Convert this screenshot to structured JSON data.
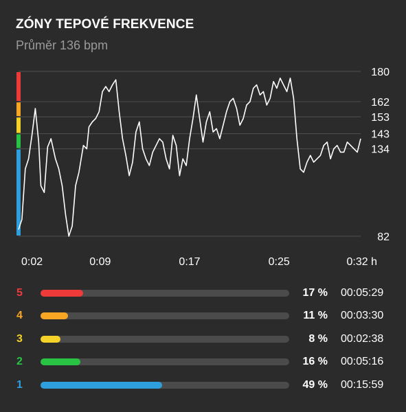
{
  "header": {
    "title": "ZÓNY TEPOVÉ FREKVENCE",
    "subtitle": "Průměr 136 bpm"
  },
  "chart_data": {
    "type": "line",
    "y_ticks": [
      "180",
      "162",
      "153",
      "143",
      "134",
      "82"
    ],
    "y_tick_values": [
      180,
      162,
      153,
      143,
      134,
      82
    ],
    "ylim": [
      82,
      180
    ],
    "x_ticks": [
      "0:02",
      "0:09",
      "0:17",
      "0:25",
      "0:32 h"
    ],
    "x_tick_values": [
      2,
      9,
      17,
      25,
      32
    ],
    "xlim": [
      1.7,
      32.3
    ],
    "grid": true,
    "line_color": "#ffffff",
    "series": [
      {
        "x": [
          1.7,
          2.0,
          2.3,
          2.6,
          2.9,
          3.2,
          3.5,
          3.7,
          4.0,
          4.3,
          4.6,
          5.0,
          5.3,
          5.6,
          5.9,
          6.2,
          6.5,
          6.8,
          7.1,
          7.5,
          7.8,
          8.0,
          8.3,
          8.6,
          8.9,
          9.2,
          9.5,
          9.8,
          10.1,
          10.4,
          10.7,
          11.0,
          11.3,
          11.6,
          11.9,
          12.2,
          12.5,
          12.8,
          13.1,
          13.4,
          13.7,
          14.0,
          14.3,
          14.6,
          14.9,
          15.2,
          15.5,
          15.8,
          16.1,
          16.4,
          16.7,
          17.0,
          17.3,
          17.6,
          17.9,
          18.2,
          18.5,
          18.8,
          19.1,
          19.4,
          19.7,
          20.0,
          20.3,
          20.6,
          20.9,
          21.2,
          21.5,
          21.8,
          22.1,
          22.4,
          22.7,
          23.0,
          23.3,
          23.6,
          23.9,
          24.2,
          24.5,
          24.8,
          25.1,
          25.4,
          25.7,
          26.0,
          26.3,
          26.6,
          26.9,
          27.2,
          27.5,
          27.8,
          28.1,
          28.4,
          28.7,
          29.0,
          29.3,
          29.6,
          29.9,
          30.2,
          30.5,
          30.8,
          31.1,
          31.4,
          31.7,
          32.0,
          32.3
        ],
        "values": [
          86,
          92,
          122,
          128,
          142,
          158,
          138,
          112,
          108,
          135,
          140,
          128,
          122,
          112,
          95,
          82,
          88,
          112,
          120,
          136,
          134,
          147,
          150,
          152,
          156,
          168,
          171,
          168,
          172,
          175,
          156,
          140,
          130,
          118,
          126,
          144,
          150,
          134,
          128,
          124,
          132,
          136,
          140,
          138,
          128,
          122,
          142,
          136,
          118,
          128,
          124,
          140,
          152,
          166,
          152,
          138,
          150,
          156,
          144,
          146,
          140,
          148,
          156,
          162,
          164,
          158,
          148,
          152,
          160,
          162,
          170,
          172,
          166,
          168,
          160,
          164,
          174,
          170,
          176,
          172,
          168,
          176,
          164,
          140,
          122,
          120,
          126,
          130,
          126,
          128,
          130,
          136,
          138,
          128,
          134,
          136,
          132,
          132,
          138,
          136,
          134,
          132,
          140
        ]
      }
    ],
    "zone_boundaries_bpm": [
      134,
      143,
      153,
      162,
      180
    ],
    "zone_colors": [
      "#2e9fdc",
      "#28c244",
      "#f5d22a",
      "#f6a623",
      "#ef3a3a"
    ]
  },
  "zones": [
    {
      "number": "5",
      "percent": "17 %",
      "duration": "00:05:29",
      "fraction": 0.17,
      "color": "#ef3a3a"
    },
    {
      "number": "4",
      "percent": "11 %",
      "duration": "00:03:30",
      "fraction": 0.11,
      "color": "#f6a623"
    },
    {
      "number": "3",
      "percent": "8 %",
      "duration": "00:02:38",
      "fraction": 0.08,
      "color": "#f5d22a"
    },
    {
      "number": "2",
      "percent": "16 %",
      "duration": "00:05:16",
      "fraction": 0.16,
      "color": "#28c244"
    },
    {
      "number": "1",
      "percent": "49 %",
      "duration": "00:15:59",
      "fraction": 0.49,
      "color": "#2e9fdc"
    }
  ]
}
